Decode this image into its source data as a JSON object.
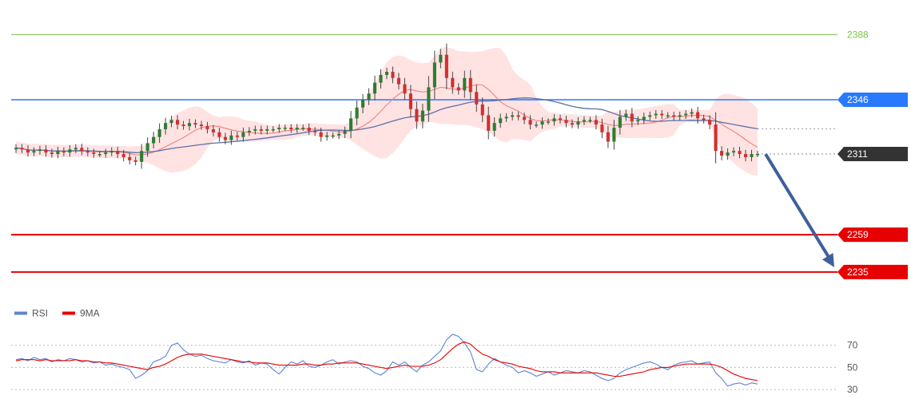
{
  "chart_data": [
    {
      "type": "candlestick",
      "title": "",
      "xlabel": "",
      "ylabel": "",
      "ylim": [
        2220,
        2400
      ],
      "grid": false,
      "horizontal_levels": [
        {
          "value": 2388,
          "label": "2388",
          "role": "target",
          "color": "#7cc242"
        },
        {
          "value": 2346,
          "label": "2346",
          "role": "resistance",
          "color": "#2979ff"
        },
        {
          "value": 2311,
          "label": "2311",
          "role": "current-price",
          "color": "#333333"
        },
        {
          "value": 2259,
          "label": "2259",
          "role": "support",
          "color": "#e60000"
        },
        {
          "value": 2235,
          "label": "2235",
          "role": "support",
          "color": "#e60000"
        }
      ],
      "close_series": [
        2315,
        2314,
        2312,
        2313,
        2314,
        2312,
        2311,
        2313,
        2312,
        2314,
        2315,
        2313,
        2312,
        2311,
        2311,
        2312,
        2313,
        2311,
        2309,
        2307,
        2306,
        2313,
        2318,
        2322,
        2327,
        2331,
        2333,
        2330,
        2329,
        2331,
        2330,
        2329,
        2327,
        2325,
        2322,
        2320,
        2323,
        2322,
        2325,
        2326,
        2327,
        2326,
        2327,
        2327,
        2328,
        2328,
        2327,
        2328,
        2328,
        2326,
        2325,
        2322,
        2323,
        2323,
        2324,
        2326,
        2334,
        2341,
        2346,
        2350,
        2357,
        2362,
        2364,
        2360,
        2356,
        2350,
        2340,
        2332,
        2339,
        2354,
        2370,
        2375,
        2360,
        2354,
        2352,
        2360,
        2351,
        2343,
        2336,
        2326,
        2331,
        2334,
        2335,
        2336,
        2335,
        2333,
        2330,
        2330,
        2332,
        2332,
        2334,
        2333,
        2331,
        2330,
        2332,
        2333,
        2333,
        2330,
        2325,
        2319,
        2328,
        2335,
        2337,
        2332,
        2333,
        2335,
        2336,
        2337,
        2336,
        2336,
        2335,
        2336,
        2337,
        2338,
        2334,
        2333,
        2330,
        2313,
        2310,
        2312,
        2313,
        2311,
        2309,
        2311,
        2311
      ],
      "bollinger_bands": {
        "visible": true,
        "color": "#ffcccc"
      },
      "moving_averages": [
        {
          "color": "#f08080"
        },
        {
          "color": "#5b6fa8"
        }
      ],
      "forecast_arrow": {
        "from": 2311,
        "to": 2235,
        "color": "#3f5f9b"
      }
    },
    {
      "type": "line",
      "title": "",
      "ylim": [
        25,
        90
      ],
      "ticks": [
        "70",
        "50",
        "30"
      ],
      "legend_position": "top-left",
      "series": [
        {
          "name": "RSI",
          "color": "#5b84d6",
          "values": [
            57,
            58,
            56,
            59,
            57,
            58,
            55,
            57,
            56,
            58,
            57,
            55,
            56,
            54,
            55,
            52,
            53,
            51,
            50,
            48,
            40,
            43,
            47,
            55,
            57,
            60,
            70,
            72,
            66,
            62,
            60,
            61,
            58,
            56,
            55,
            54,
            57,
            55,
            54,
            56,
            52,
            54,
            53,
            48,
            44,
            50,
            55,
            53,
            56,
            51,
            50,
            52,
            55,
            57,
            53,
            55,
            56,
            55,
            51,
            49,
            45,
            43,
            47,
            55,
            52,
            55,
            50,
            46,
            52,
            55,
            60,
            65,
            75,
            80,
            78,
            72,
            64,
            48,
            46,
            53,
            58,
            55,
            52,
            50,
            45,
            47,
            45,
            42,
            44,
            46,
            43,
            45,
            47,
            46,
            45,
            47,
            46,
            43,
            40,
            38,
            40,
            45,
            48,
            50,
            52,
            54,
            55,
            53,
            50,
            48,
            52,
            54,
            55,
            56,
            53,
            54,
            55,
            45,
            40,
            33,
            35,
            36,
            34,
            36,
            35
          ]
        },
        {
          "name": "9MA",
          "color": "#e60000",
          "values": [
            56,
            57,
            57,
            57,
            56,
            57,
            56,
            56,
            56,
            56,
            57,
            56,
            56,
            55,
            55,
            54,
            54,
            53,
            52,
            51,
            50,
            49,
            48,
            50,
            51,
            53,
            56,
            59,
            61,
            62,
            62,
            62,
            61,
            60,
            59,
            58,
            57,
            56,
            55,
            55,
            54,
            54,
            54,
            53,
            52,
            52,
            52,
            52,
            53,
            53,
            52,
            52,
            53,
            53,
            54,
            54,
            54,
            54,
            53,
            52,
            51,
            50,
            49,
            50,
            51,
            52,
            51,
            51,
            51,
            52,
            54,
            57,
            62,
            67,
            71,
            73,
            71,
            66,
            62,
            60,
            57,
            55,
            54,
            53,
            51,
            50,
            49,
            47,
            46,
            46,
            46,
            45,
            45,
            45,
            45,
            45,
            45,
            45,
            44,
            43,
            42,
            42,
            43,
            44,
            45,
            46,
            48,
            49,
            50,
            50,
            51,
            52,
            53,
            53,
            53,
            53,
            53,
            52,
            50,
            47,
            44,
            42,
            40,
            39,
            38
          ]
        }
      ]
    }
  ]
}
